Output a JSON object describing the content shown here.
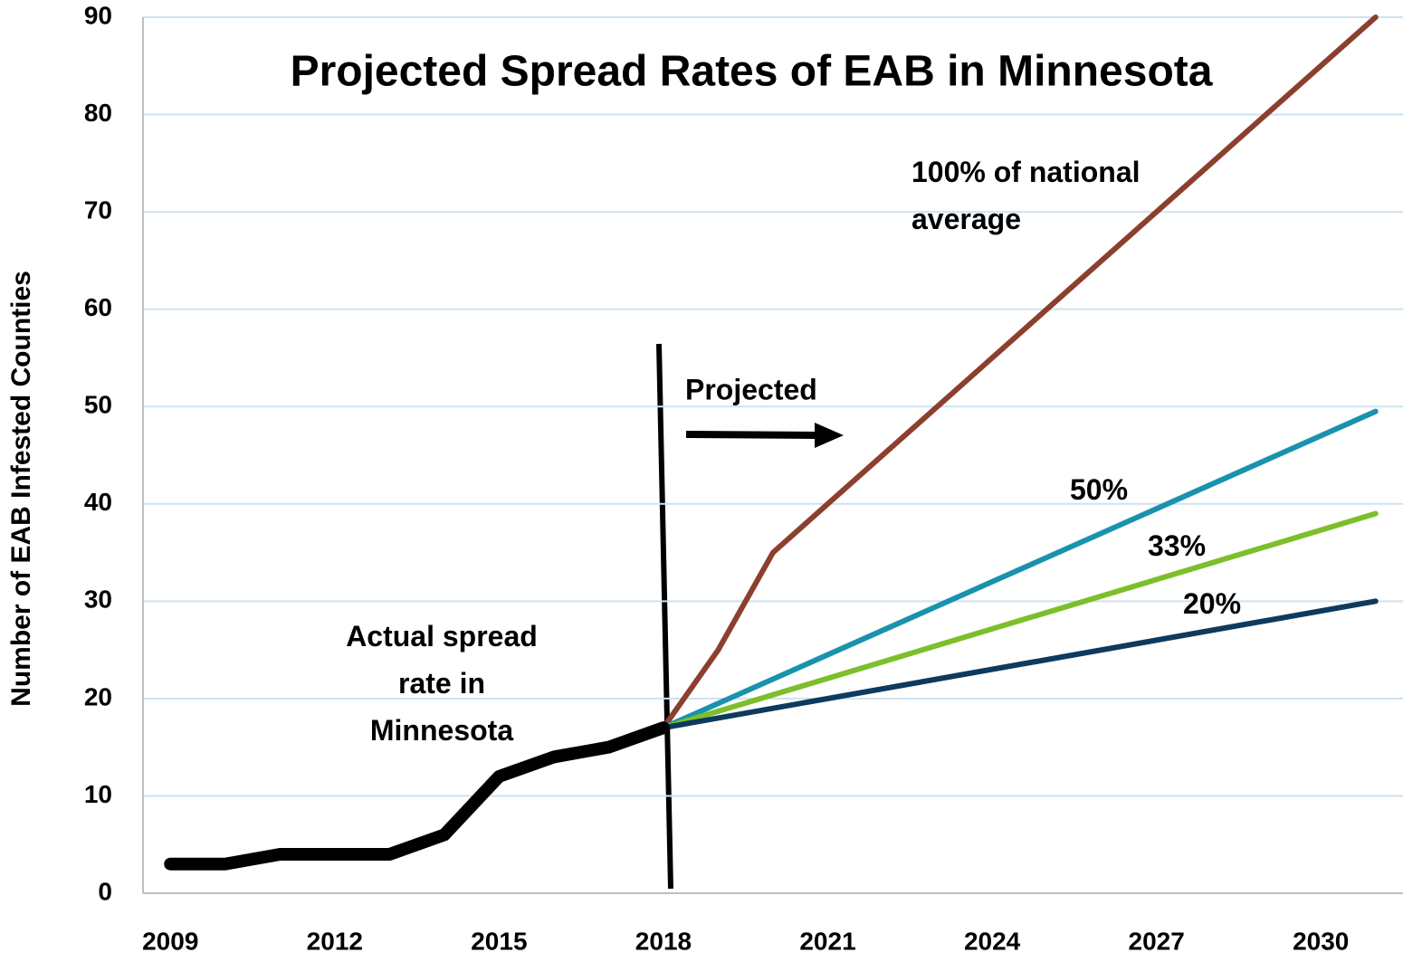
{
  "chart_data": {
    "type": "line",
    "title": "Projected Spread Rates of EAB in Minnesota",
    "y_label": "Number of EAB Infested Counties",
    "annotations": [
      "Projected"
    ],
    "xlim": [
      2008.5,
      2031.5
    ],
    "xticks": [
      2009,
      2012,
      2015,
      2018,
      2021,
      2024,
      2027,
      2030
    ],
    "ylim": [
      0,
      90
    ],
    "yticks": [
      0,
      10,
      20,
      30,
      40,
      50,
      60,
      70,
      80,
      90
    ],
    "grid": true,
    "series": [
      {
        "name": "100% of national average",
        "color": "#8c3f2d",
        "width": 6,
        "x": [
          2018,
          2019,
          2020,
          2021,
          2022,
          2023,
          2024,
          2025,
          2026,
          2027,
          2028,
          2029,
          2030,
          2031
        ],
        "values": [
          17,
          25,
          35,
          40,
          45,
          50,
          55,
          60,
          65,
          70,
          75,
          80,
          85,
          90
        ]
      },
      {
        "name": "50%",
        "color": "#1a92ae",
        "width": 6,
        "x": [
          2018,
          2031
        ],
        "values": [
          17,
          49.5
        ]
      },
      {
        "name": "33%",
        "color": "#7cbf2a",
        "width": 6,
        "x": [
          2018,
          2031
        ],
        "values": [
          17,
          39
        ]
      },
      {
        "name": "20%",
        "color": "#0e3a5e",
        "width": 6,
        "x": [
          2018,
          2031
        ],
        "values": [
          17,
          30
        ]
      },
      {
        "name": "Actual spread rate in Minnesota",
        "color": "#000000",
        "width": 14,
        "x": [
          2009,
          2010,
          2011,
          2012,
          2013,
          2014,
          2015,
          2016,
          2017,
          2018
        ],
        "values": [
          3,
          3,
          4,
          4,
          4,
          6,
          12,
          14,
          15,
          17
        ]
      }
    ]
  }
}
